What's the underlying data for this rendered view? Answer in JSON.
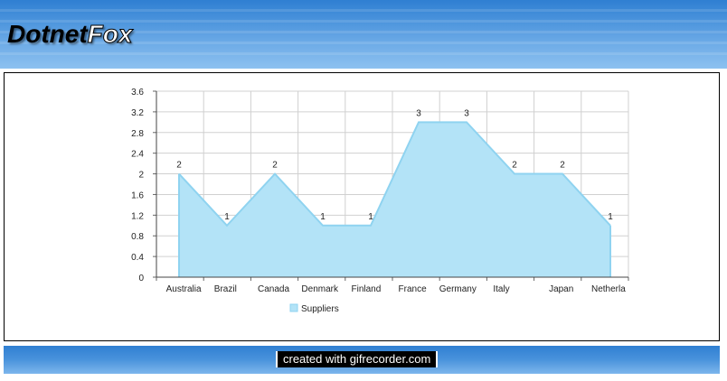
{
  "header": {
    "logo_part1": "Dotnet",
    "logo_part2": "Fox"
  },
  "footer": {
    "watermark": "created with gifrecorder.com"
  },
  "colors": {
    "header_blue": "#3b86d6",
    "area_fill": "#b3e3f7",
    "area_stroke": "#8fd3f0"
  },
  "chart_data": {
    "type": "area",
    "categories": [
      "Australia",
      "Brazil",
      "Canada",
      "Denmark",
      "Finland",
      "France",
      "Germany",
      "Italy",
      "Japan",
      "Netherla"
    ],
    "series": [
      {
        "name": "Suppliers",
        "values": [
          2,
          1,
          2,
          1,
          1,
          3,
          3,
          2,
          2,
          1
        ]
      }
    ],
    "data_labels": [
      "2",
      "1",
      "2",
      "1",
      "1",
      "3",
      "3",
      "2",
      "2",
      "1"
    ],
    "yticks": [
      "0",
      "0.4",
      "0.8",
      "1.2",
      "1.6",
      "2",
      "2.4",
      "2.8",
      "3.2",
      "3.6"
    ],
    "ylim": [
      0,
      3.6
    ],
    "grid": true,
    "legend_position": "bottom-left",
    "title": "",
    "xlabel": "",
    "ylabel": ""
  }
}
